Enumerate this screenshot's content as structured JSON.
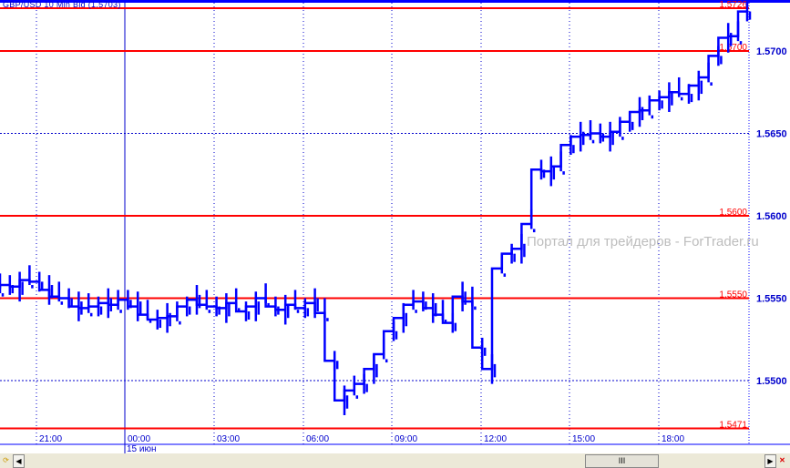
{
  "title": "GBP/USD 10 Min Bid (1.5703)",
  "watermark": "Портал для трейдеров - ForTrader.ru",
  "date_label": "15 июн",
  "scrollbar": {
    "left_icon": "arrow-left-icon",
    "right_icon": "arrow-right-icon",
    "thumb_label": "III"
  },
  "chart_data": {
    "type": "line",
    "title": "GBP/USD 10 Min Bid (1.5703)",
    "ylim": [
      1.5465,
      1.5728
    ],
    "y_ticks": [
      "1.5700",
      "1.5650",
      "1.5600",
      "1.5550",
      "1.5500"
    ],
    "x_ticks": [
      "21:00",
      "00:00",
      "03:00",
      "06:00",
      "09:00",
      "12:00",
      "15:00",
      "18:00"
    ],
    "grid": true,
    "level_lines": [
      {
        "value": 1.5726,
        "label": "1.5726"
      },
      {
        "value": 1.57,
        "label": "1.5700"
      },
      {
        "value": 1.56,
        "label": "1.5600"
      },
      {
        "value": 1.555,
        "label": "1.5550"
      },
      {
        "value": 1.5471,
        "label": "1.5471"
      }
    ],
    "colors": {
      "series": "#0000ff",
      "levels": "#ff0000",
      "axis": "#0000cc"
    },
    "series": [
      {
        "values": [
          1.5556,
          1.5558,
          1.5557,
          1.5561,
          1.556,
          1.5555,
          1.5551,
          1.555,
          1.5545,
          1.5544,
          1.5545,
          1.5547,
          1.5546,
          1.5549,
          1.5545,
          1.554,
          1.5537,
          1.5538,
          1.5539,
          1.5545,
          1.5549,
          1.5546,
          1.5545,
          1.5544,
          1.5547,
          1.5542,
          1.5545,
          1.555,
          1.5545,
          1.5543,
          1.5546,
          1.5544,
          1.5547,
          1.5541,
          1.5512,
          1.5488,
          1.5494,
          1.5498,
          1.5507,
          1.5516,
          1.553,
          1.5538,
          1.5546,
          1.5548,
          1.5544,
          1.554,
          1.5535,
          1.5551,
          1.5548,
          1.552,
          1.5507,
          1.5568,
          1.5577,
          1.558,
          1.5595,
          1.5628,
          1.5627,
          1.563,
          1.5643,
          1.5648,
          1.5649,
          1.565,
          1.5648,
          1.5651,
          1.5657,
          1.5663,
          1.5664,
          1.567,
          1.5672,
          1.5675,
          1.5674,
          1.5679,
          1.5684,
          1.5697,
          1.5708,
          1.5709,
          1.5724
        ]
      }
    ]
  }
}
